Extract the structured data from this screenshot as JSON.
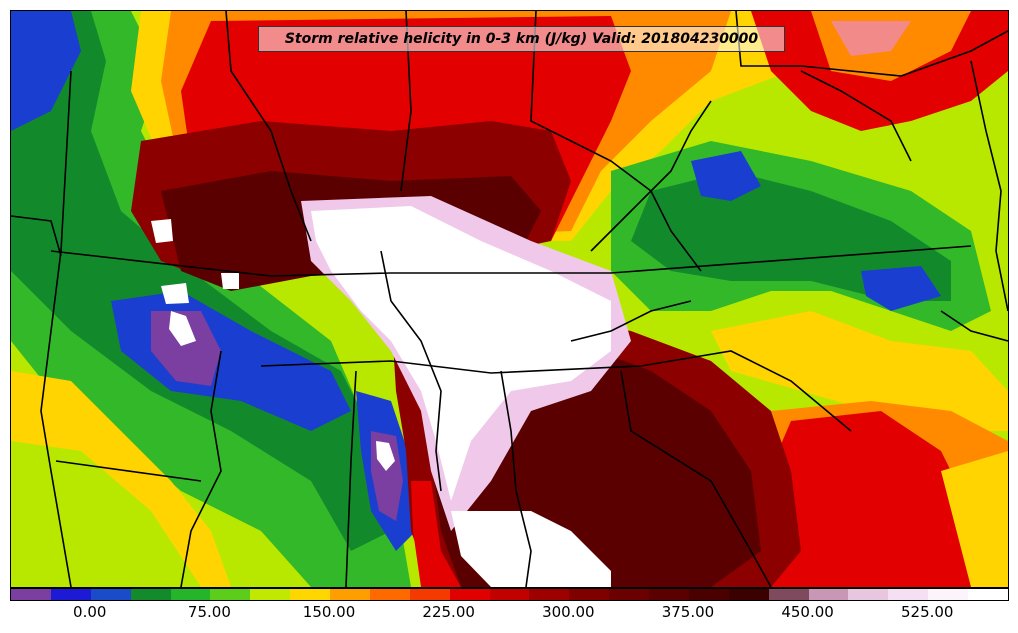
{
  "title": "Storm relative helicity in 0-3 km (J/kg) Valid: 201804230000",
  "colorbar": {
    "colors": [
      "#7a3fa0",
      "#1d1ad6",
      "#1a4bc9",
      "#138a2c",
      "#25b52a",
      "#5ccd1a",
      "#c0e800",
      "#ffd700",
      "#ff9e00",
      "#ff6a00",
      "#f53a00",
      "#e10000",
      "#c10000",
      "#9e0000",
      "#800000",
      "#6a0000",
      "#5a0000",
      "#4b0000",
      "#3b0000",
      "#7f4a5e",
      "#c897b5",
      "#e8c6e0",
      "#f5e0f3",
      "#fcf3fb",
      "#ffffff"
    ],
    "tick_labels": [
      "0.00",
      "75.00",
      "150.00",
      "225.00",
      "300.00",
      "375.00",
      "450.00",
      "525.00"
    ],
    "tick_segment_index": [
      2,
      5,
      8,
      11,
      14,
      17,
      20,
      23
    ]
  },
  "field_colors": {
    "background": "#b9e800",
    "blue": "#1a3ecf",
    "purple": "#7a3fa0",
    "green_dark": "#128a2c",
    "green": "#33b82a",
    "yellow": "#ffd400",
    "orange": "#ff8a00",
    "red": "#e30000",
    "dark_red": "#8c0000",
    "maroon": "#5a0000",
    "pink": "#f0c8ea",
    "white": "#ffffff",
    "border": "#000000"
  }
}
